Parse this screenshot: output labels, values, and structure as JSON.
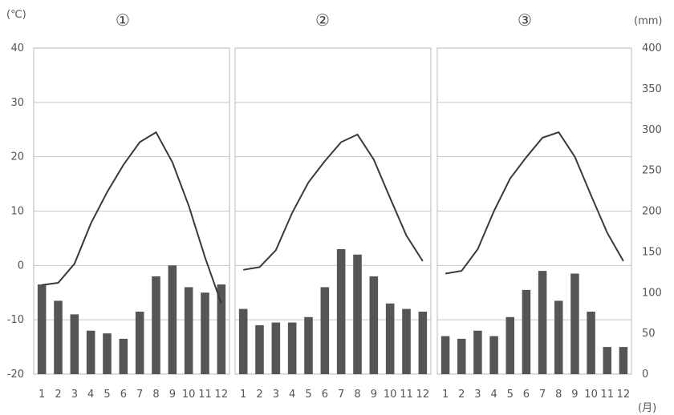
{
  "chart_data": [
    {
      "type": "bar+line",
      "title": "①",
      "categories": [
        "1",
        "2",
        "3",
        "4",
        "5",
        "6",
        "7",
        "8",
        "9",
        "10",
        "11",
        "12"
      ],
      "series": [
        {
          "values": [
            -3.5,
            -6.5,
            -9.0,
            -12.0,
            -12.5,
            -13.5,
            -8.5,
            -2.0,
            0.0,
            -4.0,
            -5.0,
            -3.5
          ]
        },
        {
          "values": [
            -3.6,
            -3.2,
            0.3,
            7.7,
            13.5,
            18.5,
            22.7,
            24.5,
            19.0,
            11.0,
            1.5,
            -7.0
          ]
        }
      ]
    },
    {
      "type": "bar+line",
      "title": "②",
      "categories": [
        "1",
        "2",
        "3",
        "4",
        "5",
        "6",
        "7",
        "8",
        "9",
        "10",
        "11",
        "12"
      ],
      "series": [
        {
          "values": [
            -8.0,
            -11.0,
            -10.5,
            -10.5,
            -9.5,
            -4.0,
            3.0,
            2.0,
            -2.0,
            -7.0,
            -8.0,
            -8.5
          ]
        },
        {
          "values": [
            -0.8,
            -0.3,
            2.8,
            9.7,
            15.3,
            19.2,
            22.7,
            24.1,
            19.5,
            12.4,
            5.5,
            0.8
          ]
        }
      ]
    },
    {
      "type": "bar+line",
      "title": "③",
      "categories": [
        "1",
        "2",
        "3",
        "4",
        "5",
        "6",
        "7",
        "8",
        "9",
        "10",
        "11",
        "12"
      ],
      "series": [
        {
          "values": [
            -13.0,
            -13.5,
            -12.0,
            -13.0,
            -9.5,
            -4.5,
            -1.0,
            -6.5,
            -1.5,
            -8.5,
            -15.0,
            -15.0
          ]
        },
        {
          "values": [
            -1.5,
            -1.0,
            3.0,
            10.0,
            16.0,
            19.9,
            23.5,
            24.5,
            20.0,
            12.9,
            6.0,
            0.8
          ]
        }
      ]
    }
  ],
  "axes": {
    "left_unit": "(℃)",
    "right_unit": "(mm)",
    "month_unit": "(月)",
    "left_ticks": [
      "40",
      "30",
      "20",
      "10",
      "0",
      "-10",
      "-20"
    ],
    "left_values": [
      40,
      30,
      20,
      10,
      0,
      -10,
      -20
    ],
    "right_ticks": [
      "400",
      "350",
      "300",
      "250",
      "200",
      "150",
      "100",
      "50",
      "0"
    ],
    "right_values": [
      400,
      350,
      300,
      250,
      200,
      150,
      100,
      50,
      0
    ],
    "ylim_temperature": [
      -20,
      40
    ],
    "ylim_precipitation": [
      0,
      400
    ],
    "grid": true
  }
}
